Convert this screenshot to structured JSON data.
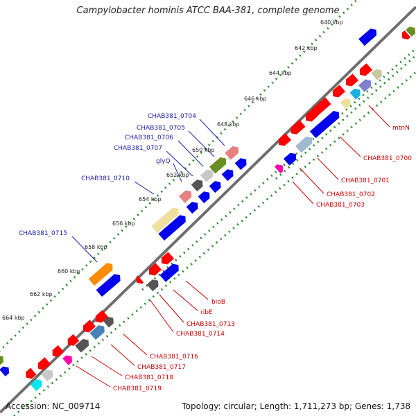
{
  "title": "Campylobacter hominis ATCC BAA-381, complete genome",
  "footer": {
    "accession": "Accession: NC_009714",
    "summary": "Topology: circular; Length: 1,711,273 bp; Genes: 1,738"
  },
  "ticks": [
    "640 kbp",
    "642 kbp",
    "644 kbp",
    "646 kbp",
    "648 kbp",
    "650 kbp",
    "652 kbp",
    "654 kbp",
    "656 kbp",
    "658 kbp",
    "660 kbp",
    "662 kbp",
    "664 kbp"
  ],
  "labels_forward": [
    "CHAB381_0704",
    "CHAB381_0705",
    "CHAB381_0706",
    "CHAB381_0707",
    "glyQ",
    "CHAB381_0710",
    "CHAB381_0715"
  ],
  "labels_reverse": [
    "mtnN",
    "CHAB381_0700",
    "CHAB381_0701",
    "CHAB381_0702",
    "CHAB381_0703",
    "bioB",
    "ribE",
    "CHAB381_0713",
    "CHAB381_0714",
    "CHAB381_0716",
    "CHAB381_0717",
    "CHAB381_0718",
    "CHAB381_0719"
  ],
  "colors": {
    "forward_label": "#1a1aa8",
    "reverse_label": "#cc0000",
    "backbone": "#6e6e6e",
    "tick_dots": "#2a8a2a"
  }
}
